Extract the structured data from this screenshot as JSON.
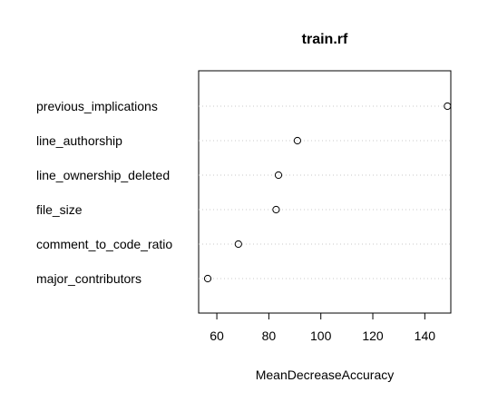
{
  "chart_data": {
    "type": "scatter",
    "title": "train.rf",
    "xlabel": "MeanDecreaseAccuracy",
    "ylabel": "",
    "xlim": [
      53,
      150
    ],
    "xticks": [
      60,
      80,
      100,
      120,
      140
    ],
    "grid": "dotted horizontal lines",
    "categories": [
      "previous_implications",
      "line_authorship",
      "line_ownership_deleted",
      "file_size",
      "comment_to_code_ratio",
      "major_contributors"
    ],
    "values": [
      148.7,
      91.0,
      83.7,
      82.8,
      68.3,
      56.5
    ]
  }
}
